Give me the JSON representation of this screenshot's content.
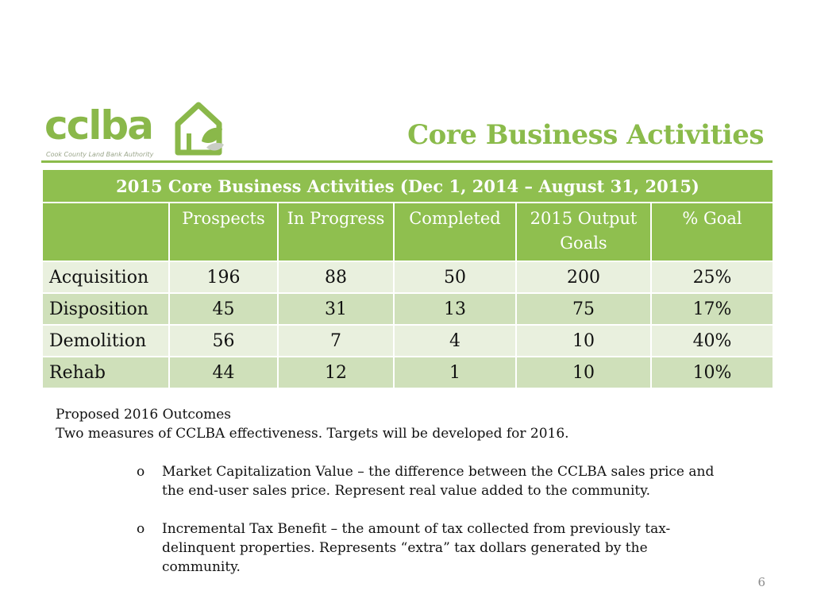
{
  "logo": {
    "name": "cclba",
    "subtitle": "Cook County Land Bank Authority"
  },
  "title": "Core Business Activities",
  "table": {
    "caption": "2015 Core Business Activities (Dec 1, 2014 – August 31, 2015)",
    "headers": [
      "",
      "Prospects",
      "In Progress",
      "Completed",
      "2015 Output Goals",
      "% Goal"
    ],
    "rows": [
      [
        "Acquisition",
        "196",
        "88",
        "50",
        "200",
        "25%"
      ],
      [
        "Disposition",
        "45",
        "31",
        "13",
        "75",
        "17%"
      ],
      [
        "Demolition",
        "56",
        "7",
        "4",
        "10",
        "40%"
      ],
      [
        "Rehab",
        "44",
        "12",
        "1",
        "10",
        "10%"
      ]
    ]
  },
  "body": {
    "line1": "Proposed 2016 Outcomes",
    "line2": "Two measures of CCLBA effectiveness.  Targets will be developed for 2016."
  },
  "bullets": [
    {
      "mark": "o",
      "text": "Market Capitalization Value – the difference between the CCLBA sales price and the end-user sales price.  Represent real value added to the community."
    },
    {
      "mark": "o",
      "text": "Incremental Tax Benefit – the amount of tax collected from previously tax-delinquent properties.  Represents “extra” tax dollars generated by the community."
    }
  ],
  "page_number": "6",
  "colors": {
    "accent": "#8bbb4b",
    "row_light": "#e9f0de",
    "row_dark": "#cfe0ba"
  }
}
